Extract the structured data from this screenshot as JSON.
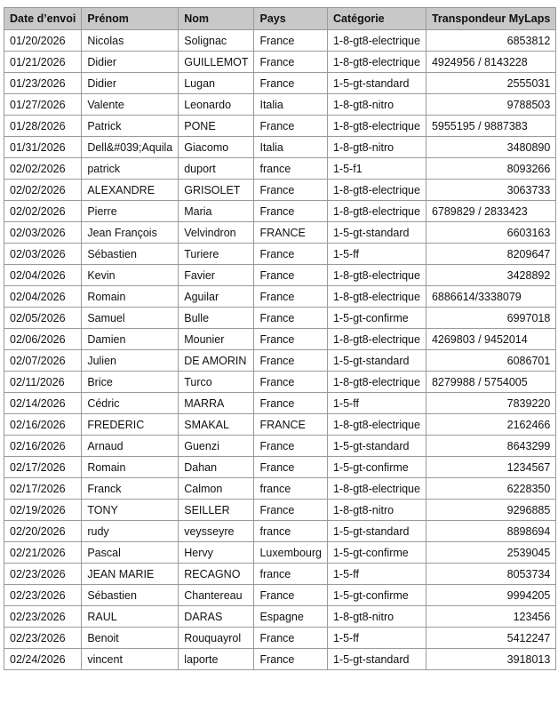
{
  "table": {
    "headers": [
      "Date d’envoi",
      "Prénom",
      "Nom",
      "Pays",
      "Catégorie",
      "Transpondeur MyLaps"
    ],
    "rows": [
      [
        "01/20/2026",
        "Nicolas",
        "Solignac",
        "France",
        "1-8-gt8-electrique",
        "6853812"
      ],
      [
        "01/21/2026",
        "Didier",
        "GUILLEMOT",
        "France",
        "1-8-gt8-electrique",
        "4924956 / 8143228"
      ],
      [
        "01/23/2026",
        "Didier",
        "Lugan",
        "France",
        "1-5-gt-standard",
        "2555031"
      ],
      [
        "01/27/2026",
        "Valente",
        "Leonardo",
        "Italia",
        "1-8-gt8-nitro",
        "9788503"
      ],
      [
        "01/28/2026",
        "Patrick",
        "PONE",
        "France",
        "1-8-gt8-electrique",
        "5955195 / 9887383"
      ],
      [
        "01/31/2026",
        "Dell&#039;Aquila",
        "Giacomo",
        "Italia",
        "1-8-gt8-nitro",
        "3480890"
      ],
      [
        "02/02/2026",
        "patrick",
        "duport",
        "france",
        "1-5-f1",
        "8093266"
      ],
      [
        "02/02/2026",
        "ALEXANDRE",
        "GRISOLET",
        "France",
        "1-8-gt8-electrique",
        "3063733"
      ],
      [
        "02/02/2026",
        "Pierre",
        "Maria",
        "France",
        "1-8-gt8-electrique",
        "6789829 / 2833423"
      ],
      [
        "02/03/2026",
        "Jean François",
        "Velvindron",
        "FRANCE",
        "1-5-gt-standard",
        "6603163"
      ],
      [
        "02/03/2026",
        "Sébastien",
        "Turiere",
        "France",
        "1-5-ff",
        "8209647"
      ],
      [
        "02/04/2026",
        "Kevin",
        "Favier",
        "France",
        "1-8-gt8-electrique",
        "3428892"
      ],
      [
        "02/04/2026",
        "Romain",
        "Aguilar",
        "France",
        "1-8-gt8-electrique",
        "6886614/3338079"
      ],
      [
        "02/05/2026",
        "Samuel",
        "Bulle",
        "France",
        "1-5-gt-confirme",
        "6997018"
      ],
      [
        "02/06/2026",
        "Damien",
        "Mounier",
        "France",
        "1-8-gt8-electrique",
        "4269803 / 9452014"
      ],
      [
        "02/07/2026",
        "Julien",
        "DE AMORIN",
        "France",
        "1-5-gt-standard",
        "6086701"
      ],
      [
        "02/11/2026",
        "Brice",
        "Turco",
        "France",
        "1-8-gt8-electrique",
        "8279988 / 5754005"
      ],
      [
        "02/14/2026",
        "Cédric",
        "MARRA",
        "France",
        "1-5-ff",
        "7839220"
      ],
      [
        "02/16/2026",
        "FREDERIC",
        "SMAKAL",
        "FRANCE",
        "1-8-gt8-electrique",
        "2162466"
      ],
      [
        "02/16/2026",
        "Arnaud",
        "Guenzi",
        "France",
        "1-5-gt-standard",
        "8643299"
      ],
      [
        "02/17/2026",
        "Romain",
        "Dahan",
        "France",
        "1-5-gt-confirme",
        "1234567"
      ],
      [
        "02/17/2026",
        "Franck",
        "Calmon",
        "france",
        "1-8-gt8-electrique",
        "6228350"
      ],
      [
        "02/19/2026",
        "TONY",
        "SEILLER",
        "France",
        "1-8-gt8-nitro",
        "9296885"
      ],
      [
        "02/20/2026",
        "rudy",
        "veysseyre",
        "france",
        "1-5-gt-standard",
        "8898694"
      ],
      [
        "02/21/2026",
        "Pascal",
        "Hervy",
        "Luxembourg",
        "1-5-gt-confirme",
        "2539045"
      ],
      [
        "02/23/2026",
        "JEAN MARIE",
        "RECAGNO",
        "france",
        "1-5-ff",
        "8053734"
      ],
      [
        "02/23/2026",
        "Sébastien",
        "Chantereau",
        "France",
        "1-5-gt-confirme",
        "9994205"
      ],
      [
        "02/23/2026",
        "RAUL",
        "DARAS",
        "Espagne",
        "1-8-gt8-nitro",
        "123456"
      ],
      [
        "02/23/2026",
        "Benoit",
        "Rouquayrol",
        "France",
        "1-5-ff",
        "5412247"
      ],
      [
        "02/24/2026",
        "vincent",
        "laporte",
        "France",
        "1-5-gt-standard",
        "3918013"
      ]
    ]
  }
}
